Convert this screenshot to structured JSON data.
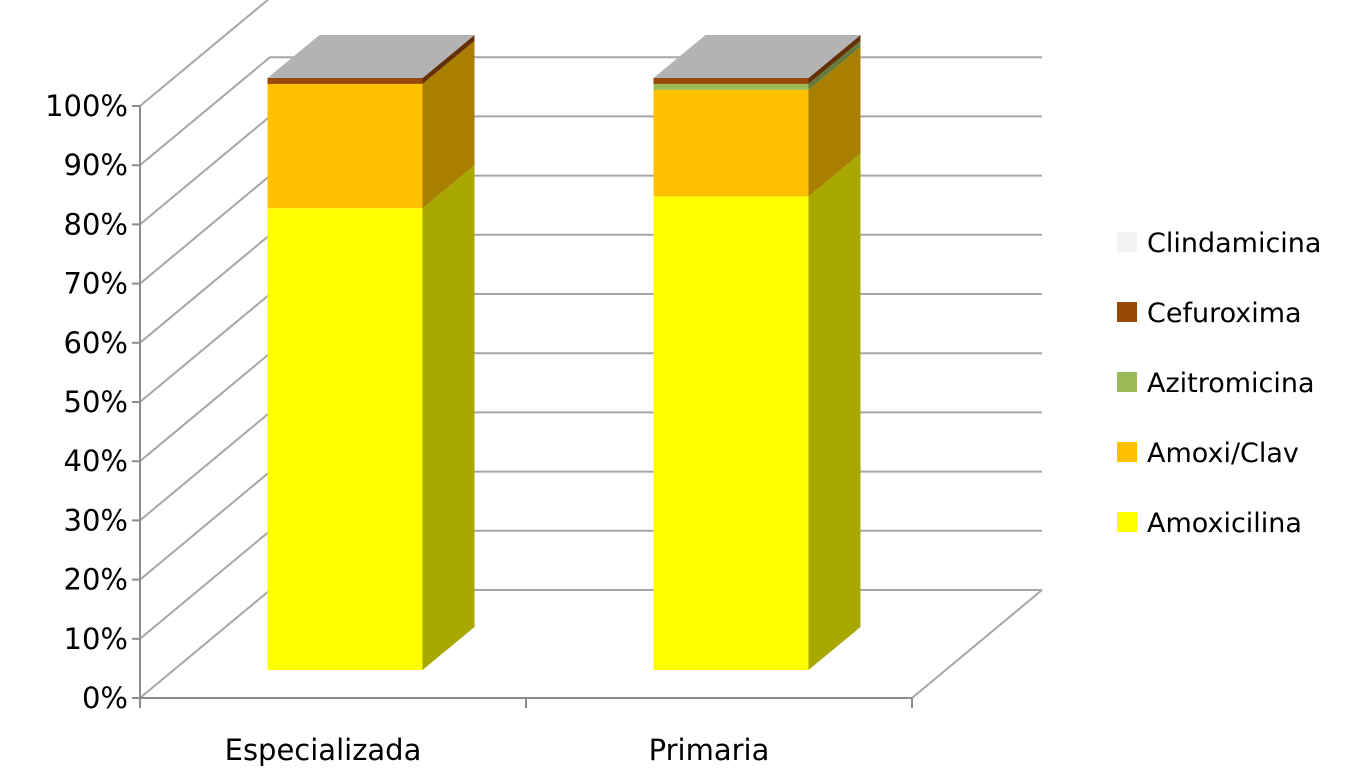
{
  "chart_data": {
    "type": "bar",
    "stacked": true,
    "percent_stacked": true,
    "three_d": true,
    "title": "",
    "xlabel": "",
    "ylabel": "",
    "ylim": [
      0,
      100
    ],
    "yticks": [
      "0%",
      "10%",
      "20%",
      "30%",
      "40%",
      "50%",
      "60%",
      "70%",
      "80%",
      "90%",
      "100%"
    ],
    "categories": [
      "Especializada",
      "Primaria"
    ],
    "series": [
      {
        "name": "Amoxicilina",
        "color": "#FFFF00",
        "values": [
          78,
          80
        ]
      },
      {
        "name": "Amoxi/Clav",
        "color": "#FFC000",
        "values": [
          21,
          18
        ]
      },
      {
        "name": "Azitromicina",
        "color": "#9BBB59",
        "values": [
          0,
          1
        ]
      },
      {
        "name": "Cefuroxima",
        "color": "#984807",
        "values": [
          1,
          1
        ]
      },
      {
        "name": "Clindamicina",
        "color": "#F2F2F2",
        "values": [
          0,
          0
        ]
      }
    ],
    "legend_order": [
      "Clindamicina",
      "Cefuroxima",
      "Azitromicina",
      "Amoxi/Clav",
      "Amoxicilina"
    ],
    "legend_position": "right",
    "grid": true
  }
}
